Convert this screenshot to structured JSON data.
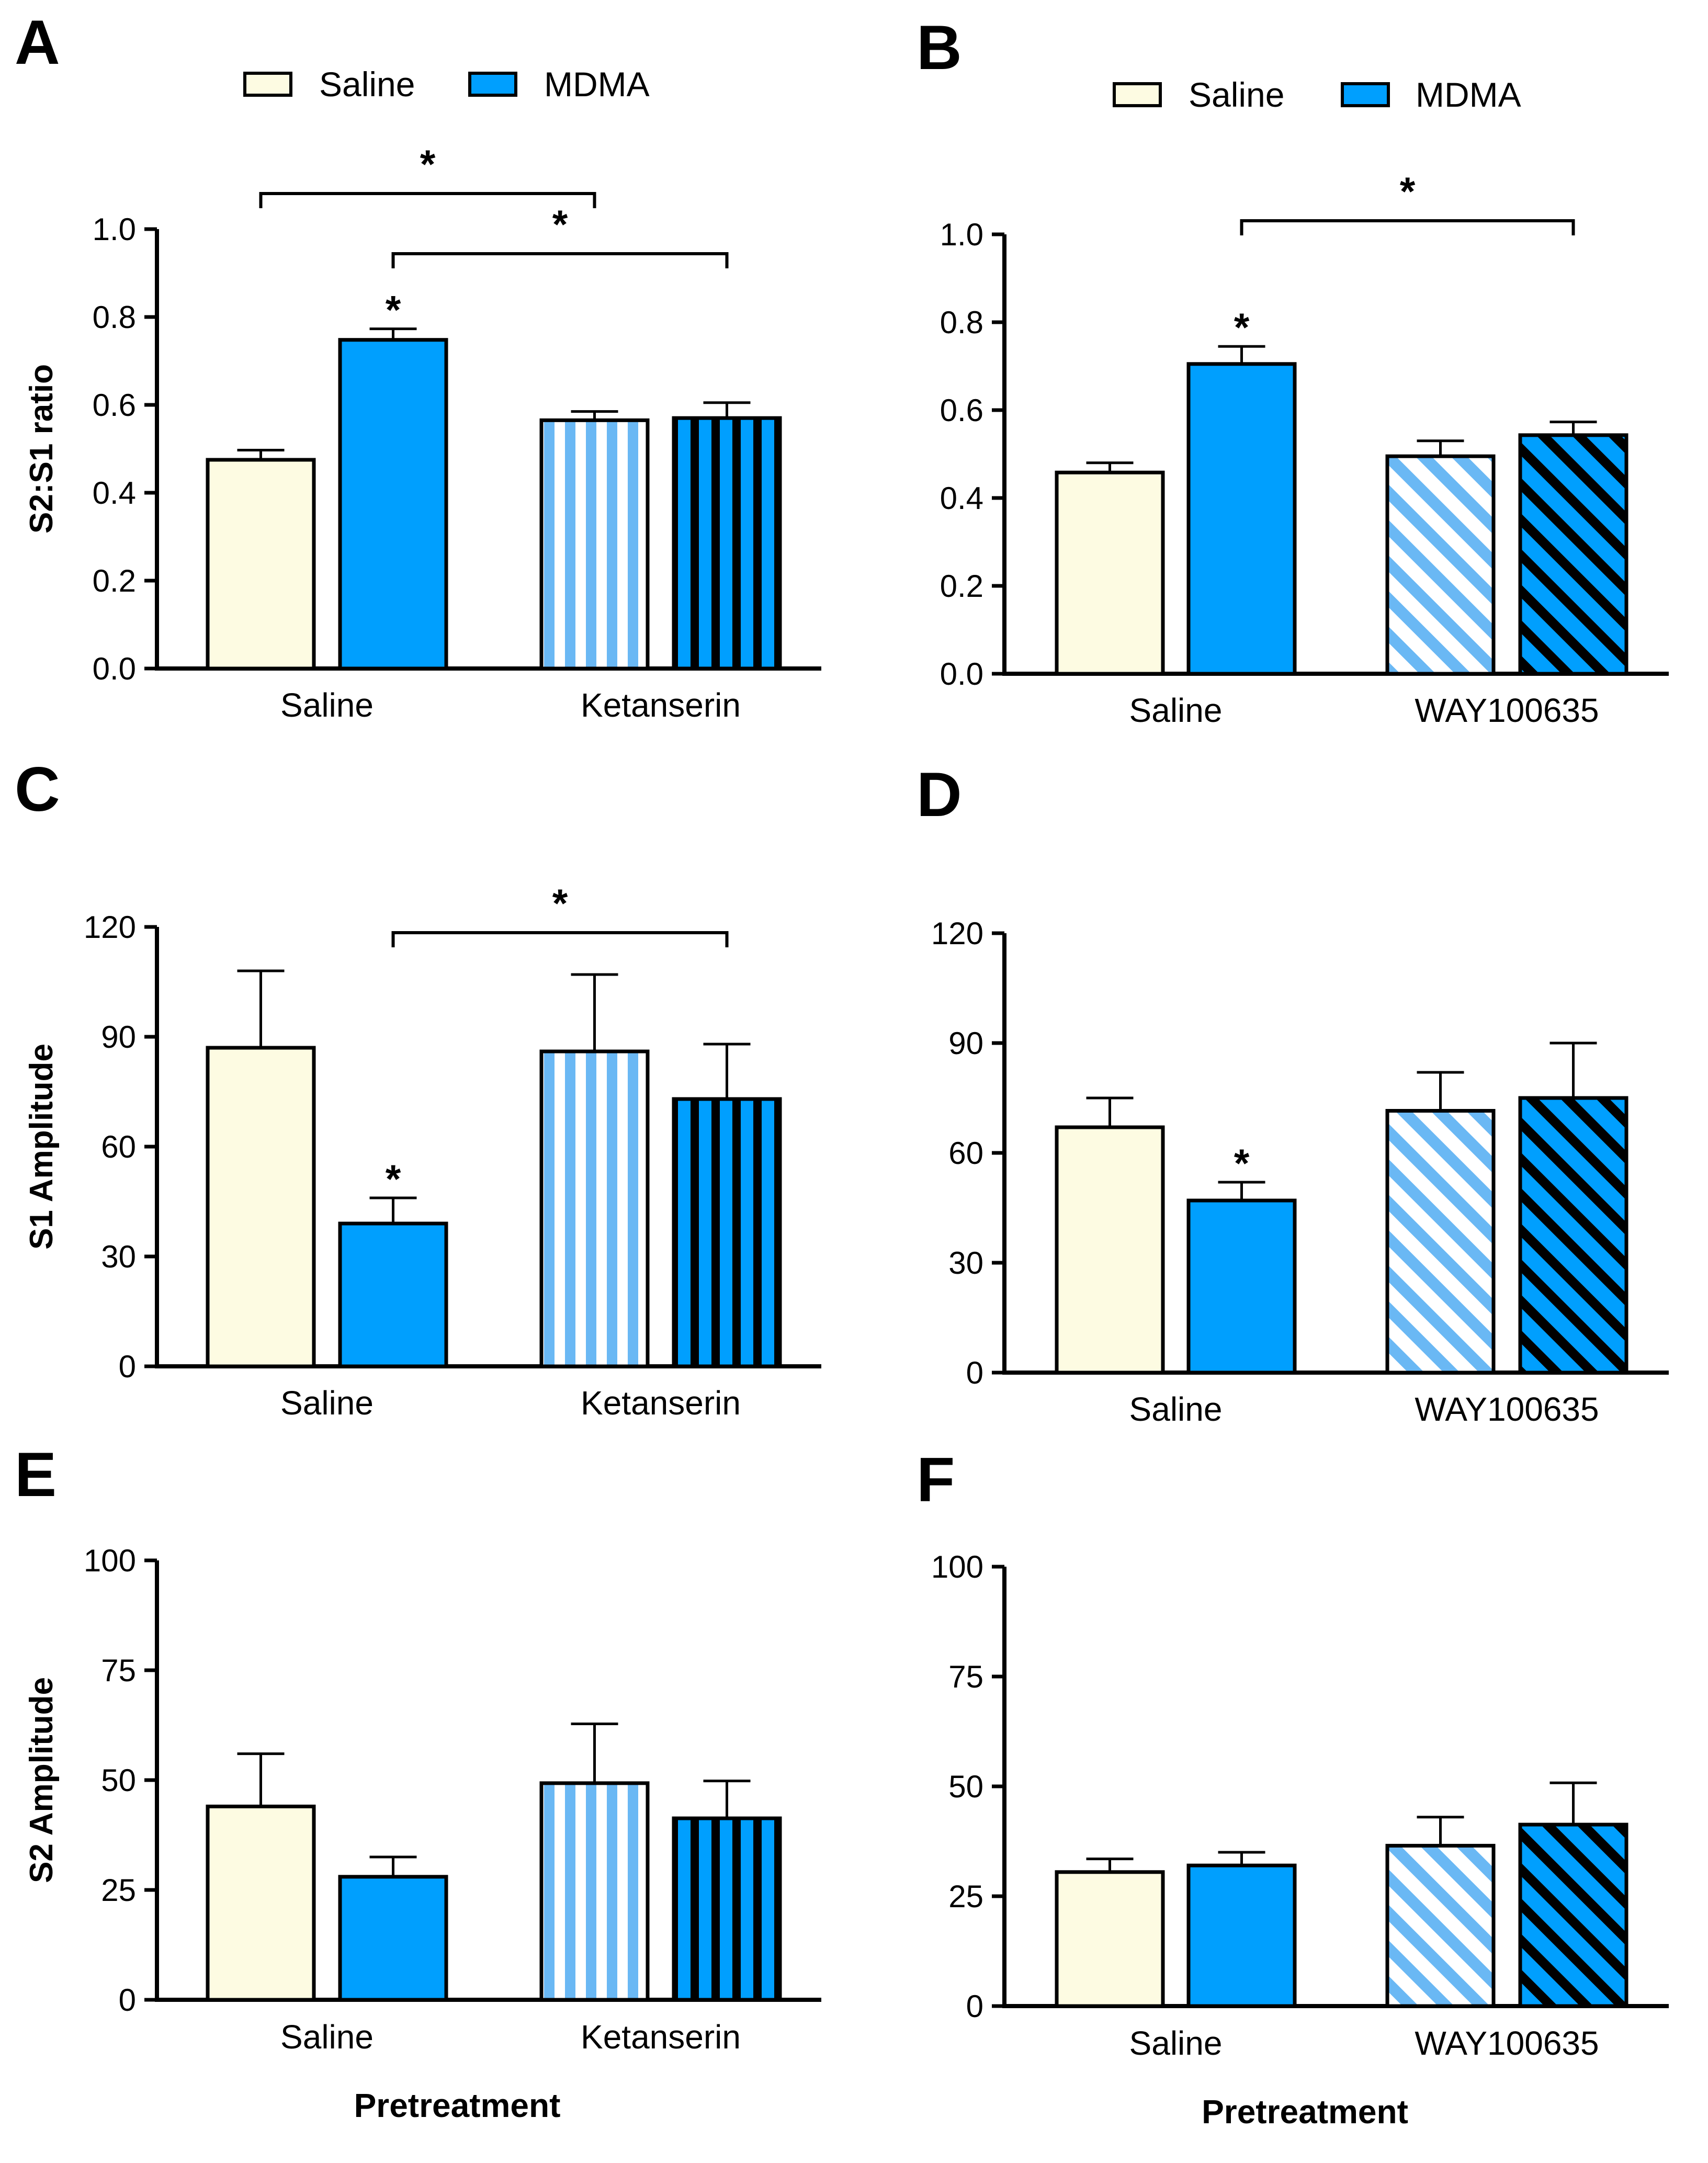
{
  "legend": {
    "entries": [
      {
        "label": "Saline",
        "fill": "#fdfbe2"
      },
      {
        "label": "MDMA",
        "fill": "#009ffe"
      }
    ]
  },
  "colors": {
    "saline": "#fdfbe2",
    "mdma": "#009ffe",
    "light_stripe": "#6ab8f4",
    "dark_stripe": "#000000"
  },
  "chart_data": [
    {
      "panel": "A",
      "type": "bar",
      "categories": [
        "Saline",
        "Ketanserin"
      ],
      "ylabel": "S2:S1 ratio",
      "xlabel": "",
      "ylim": [
        0,
        1.0
      ],
      "yticks": [
        "0.0",
        "0.2",
        "0.4",
        "0.6",
        "0.8",
        "1.0"
      ],
      "series": [
        {
          "name": "Saline",
          "values": [
            0.475,
            0.565
          ],
          "errors": [
            0.022,
            0.02
          ]
        },
        {
          "name": "MDMA",
          "values": [
            0.748,
            0.57
          ],
          "errors": [
            0.025,
            0.035
          ]
        }
      ],
      "significance": [
        {
          "type": "bar",
          "label": "*",
          "series": 1,
          "category": 0
        },
        {
          "type": "bracket",
          "label": "*",
          "from": {
            "series": 0,
            "category": 0
          },
          "to": {
            "series": 0,
            "category": 1
          }
        },
        {
          "type": "bracket",
          "label": "*",
          "from": {
            "series": 1,
            "category": 0
          },
          "to": {
            "series": 1,
            "category": 1
          }
        }
      ]
    },
    {
      "panel": "B",
      "type": "bar",
      "categories": [
        "Saline",
        "WAY100635"
      ],
      "ylabel": "",
      "xlabel": "",
      "ylim": [
        0,
        1.0
      ],
      "yticks": [
        "0.0",
        "0.2",
        "0.4",
        "0.6",
        "0.8",
        "1.0"
      ],
      "series": [
        {
          "name": "Saline",
          "values": [
            0.458,
            0.495
          ],
          "errors": [
            0.022,
            0.035
          ]
        },
        {
          "name": "MDMA",
          "values": [
            0.705,
            0.543
          ],
          "errors": [
            0.04,
            0.03
          ]
        }
      ],
      "significance": [
        {
          "type": "bar",
          "label": "*",
          "series": 1,
          "category": 0
        },
        {
          "type": "bracket",
          "label": "*",
          "from": {
            "series": 1,
            "category": 0
          },
          "to": {
            "series": 1,
            "category": 1
          }
        }
      ]
    },
    {
      "panel": "C",
      "type": "bar",
      "categories": [
        "Saline",
        "Ketanserin"
      ],
      "ylabel": "S1 Amplitude",
      "xlabel": "",
      "ylim": [
        0,
        120
      ],
      "yticks": [
        "0",
        "30",
        "60",
        "90",
        "120"
      ],
      "series": [
        {
          "name": "Saline",
          "values": [
            87,
            86
          ],
          "errors": [
            21,
            21
          ]
        },
        {
          "name": "MDMA",
          "values": [
            39,
            73
          ],
          "errors": [
            7,
            15
          ]
        }
      ],
      "significance": [
        {
          "type": "bar",
          "label": "*",
          "series": 1,
          "category": 0
        },
        {
          "type": "bracket",
          "label": "*",
          "from": {
            "series": 1,
            "category": 0
          },
          "to": {
            "series": 1,
            "category": 1
          }
        }
      ]
    },
    {
      "panel": "D",
      "type": "bar",
      "categories": [
        "Saline",
        "WAY100635"
      ],
      "ylabel": "",
      "xlabel": "",
      "ylim": [
        0,
        120
      ],
      "yticks": [
        "0",
        "30",
        "60",
        "90",
        "120"
      ],
      "series": [
        {
          "name": "Saline",
          "values": [
            67,
            71.5
          ],
          "errors": [
            8,
            10.5
          ]
        },
        {
          "name": "MDMA",
          "values": [
            47,
            75
          ],
          "errors": [
            5,
            15
          ]
        }
      ],
      "significance": [
        {
          "type": "bar",
          "label": "*",
          "series": 1,
          "category": 0
        }
      ]
    },
    {
      "panel": "E",
      "type": "bar",
      "categories": [
        "Saline",
        "Ketanserin"
      ],
      "ylabel": "S2 Amplitude",
      "xlabel": "Pretreatment",
      "ylim": [
        0,
        100
      ],
      "yticks": [
        "0",
        "25",
        "50",
        "75",
        "100"
      ],
      "series": [
        {
          "name": "Saline",
          "values": [
            44,
            49.3
          ],
          "errors": [
            12,
            13.5
          ]
        },
        {
          "name": "MDMA",
          "values": [
            28,
            41.3
          ],
          "errors": [
            4.5,
            8.5
          ]
        }
      ],
      "significance": []
    },
    {
      "panel": "F",
      "type": "bar",
      "categories": [
        "Saline",
        "WAY100635"
      ],
      "ylabel": "",
      "xlabel": "Pretreatment",
      "ylim": [
        0,
        100
      ],
      "yticks": [
        "0",
        "25",
        "50",
        "75",
        "100"
      ],
      "series": [
        {
          "name": "Saline",
          "values": [
            30.5,
            36.5
          ],
          "errors": [
            3,
            6.5
          ]
        },
        {
          "name": "MDMA",
          "values": [
            32,
            41.3
          ],
          "errors": [
            3,
            9.5
          ]
        }
      ],
      "significance": []
    }
  ]
}
